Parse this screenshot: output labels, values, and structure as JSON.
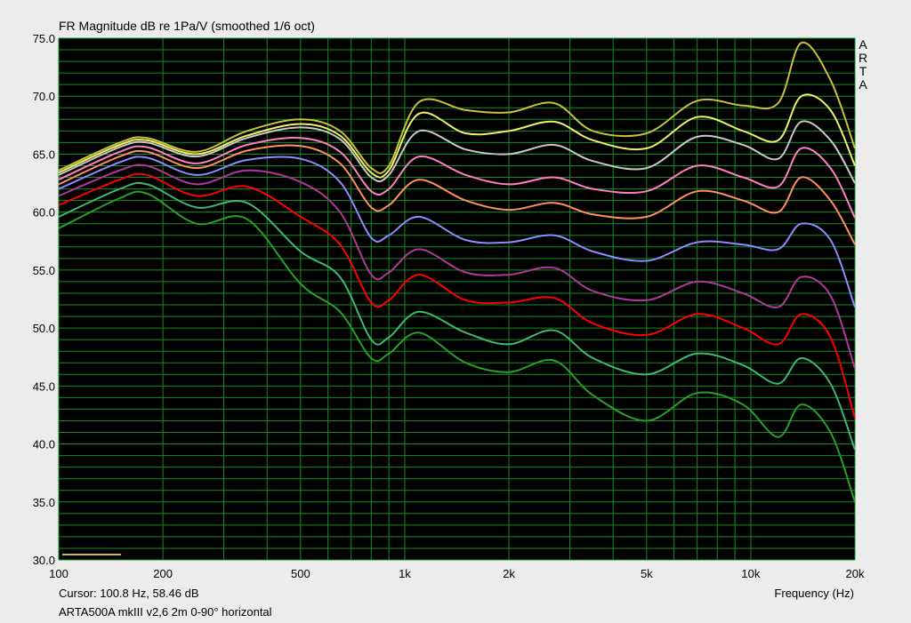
{
  "title": "FR Magnitude dB re 1Pa/V (smoothed 1/6 oct)",
  "brand_letters": [
    "A",
    "R",
    "T",
    "A"
  ],
  "cursor_text": "Cursor: 100.8 Hz, 58.46 dB",
  "caption": "ARTA500A mkIII v2,6 2m 0-90° horizontal",
  "xlabel": "Frequency (Hz)",
  "colors": {
    "background": "#000000",
    "grid": "#138d1f",
    "page": "#ececec",
    "cursor_marker": "#c8c23a"
  },
  "chart_data": {
    "type": "line",
    "title": "FR Magnitude dB re 1Pa/V (smoothed 1/6 oct)",
    "xlabel": "Frequency (Hz)",
    "ylabel": "",
    "xscale": "log",
    "xlim": [
      100,
      20000
    ],
    "ylim": [
      30,
      75
    ],
    "grid": true,
    "x_ticks": [
      100,
      200,
      500,
      1000,
      2000,
      5000,
      10000,
      20000
    ],
    "x_tick_labels": [
      "100",
      "200",
      "500",
      "1k",
      "2k",
      "5k",
      "10k",
      "20k"
    ],
    "y_ticks": [
      30,
      35,
      40,
      45,
      50,
      55,
      60,
      65,
      70,
      75
    ],
    "y_tick_labels": [
      "30.0",
      "35.0",
      "40.0",
      "45.0",
      "50.0",
      "55.0",
      "60.0",
      "65.0",
      "70.0",
      "75.0"
    ],
    "x": [
      100,
      150,
      180,
      250,
      350,
      500,
      650,
      800,
      900,
      1100,
      1500,
      2000,
      2700,
      3500,
      5000,
      7000,
      9500,
      12000,
      14000,
      17000,
      20000
    ],
    "series": [
      {
        "color": "#c8c23a",
        "values": [
          63.6,
          66.0,
          66.4,
          65.2,
          67.0,
          68.0,
          67.0,
          63.8,
          64.0,
          69.5,
          68.8,
          68.6,
          69.4,
          67.0,
          66.8,
          69.6,
          69.2,
          69.4,
          74.6,
          71.4,
          65.5
        ]
      },
      {
        "color": "#f0f06a",
        "values": [
          63.4,
          65.8,
          66.2,
          65.0,
          66.6,
          67.6,
          66.6,
          63.4,
          63.6,
          68.5,
          66.8,
          67.0,
          67.8,
          66.2,
          65.5,
          68.2,
          67.0,
          66.2,
          70.0,
          68.8,
          64.0
        ]
      },
      {
        "color": "#c8c8c8",
        "values": [
          63.2,
          65.6,
          66.0,
          64.8,
          66.4,
          67.3,
          66.3,
          63.0,
          63.2,
          67.0,
          65.4,
          65.0,
          65.8,
          64.4,
          63.8,
          66.5,
          65.8,
          64.6,
          67.8,
          66.2,
          62.5
        ]
      },
      {
        "color": "#ff80c0",
        "values": [
          62.8,
          65.2,
          65.6,
          64.2,
          65.8,
          66.4,
          65.2,
          61.8,
          62.0,
          64.8,
          63.2,
          62.4,
          63.0,
          62.0,
          61.8,
          64.0,
          63.0,
          62.2,
          65.5,
          63.8,
          59.5
        ]
      },
      {
        "color": "#ff9060",
        "values": [
          62.4,
          64.8,
          65.2,
          63.8,
          65.3,
          65.7,
          64.2,
          60.4,
          60.6,
          62.8,
          61.0,
          60.2,
          60.8,
          59.8,
          59.6,
          61.8,
          61.0,
          60.0,
          63.0,
          61.0,
          57.2
        ]
      },
      {
        "color": "#8c8cff",
        "values": [
          62.0,
          64.3,
          64.7,
          63.2,
          64.5,
          64.6,
          62.6,
          57.8,
          58.0,
          59.6,
          57.6,
          57.4,
          58.0,
          56.6,
          55.8,
          57.4,
          57.2,
          56.8,
          59.0,
          57.6,
          51.8
        ]
      },
      {
        "color": "#b03898",
        "values": [
          61.4,
          63.6,
          64.0,
          62.4,
          63.6,
          62.6,
          60.0,
          54.6,
          54.8,
          56.8,
          54.8,
          54.6,
          55.2,
          53.2,
          52.4,
          54.0,
          53.0,
          51.8,
          54.4,
          52.8,
          46.5
        ]
      },
      {
        "color": "#ff0000",
        "values": [
          60.6,
          62.8,
          63.2,
          61.4,
          62.2,
          59.6,
          57.2,
          52.2,
          52.4,
          54.6,
          52.4,
          52.2,
          52.6,
          50.4,
          49.4,
          51.2,
          50.0,
          48.6,
          51.2,
          49.2,
          42.2
        ]
      },
      {
        "color": "#40b870",
        "values": [
          59.6,
          62.0,
          62.4,
          60.4,
          60.8,
          56.6,
          54.4,
          49.0,
          49.2,
          51.4,
          49.6,
          48.6,
          49.8,
          47.4,
          46.0,
          47.8,
          46.8,
          45.2,
          47.4,
          45.2,
          39.5
        ]
      },
      {
        "color": "#28a028",
        "values": [
          58.6,
          61.2,
          61.6,
          59.0,
          59.4,
          53.8,
          51.4,
          47.4,
          47.8,
          49.6,
          47.0,
          46.2,
          47.2,
          44.2,
          42.0,
          44.4,
          43.4,
          40.6,
          43.4,
          41.0,
          35.0
        ]
      }
    ]
  }
}
